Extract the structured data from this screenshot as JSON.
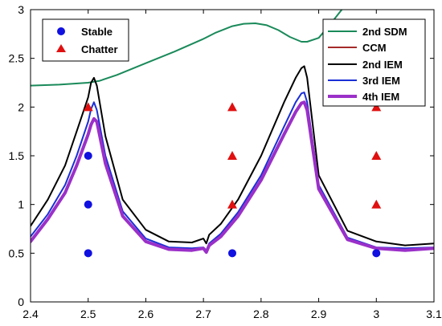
{
  "chart_data": {
    "type": "line",
    "xlim": [
      2.4,
      3.1
    ],
    "ylim": [
      0,
      3
    ],
    "xticks": [
      "2.4",
      "2.5",
      "2.6",
      "2.7",
      "2.8",
      "2.9",
      "3",
      "3.1"
    ],
    "yticks": [
      "0",
      "0.5",
      "1",
      "1.5",
      "2",
      "2.5",
      "3"
    ],
    "grid": false,
    "colors": {
      "sdm2": "#1a8a5a",
      "ccm": "#a52a2a",
      "iem2": "#000000",
      "iem3": "#1a2fd6",
      "iem4": "#9b30c8",
      "stable": "#1010e0",
      "chatter": "#e01010"
    },
    "markers": {
      "stable": {
        "name": "Stable",
        "x": [
          2.5,
          2.5,
          2.5,
          2.75,
          3.0
        ],
        "y": [
          1.5,
          1.0,
          0.5,
          0.5,
          0.5
        ]
      },
      "chatter": {
        "name": "Chatter",
        "x": [
          2.5,
          2.75,
          2.75,
          2.75,
          3.0,
          3.0,
          3.0
        ],
        "y": [
          2.0,
          2.0,
          1.5,
          1.0,
          2.0,
          1.5,
          1.0
        ]
      }
    },
    "series": [
      {
        "key": "sdm2",
        "name": "2nd SDM",
        "x": [
          2.4,
          2.45,
          2.5,
          2.52,
          2.55,
          2.6,
          2.65,
          2.7,
          2.72,
          2.75,
          2.77,
          2.79,
          2.81,
          2.83,
          2.85,
          2.87,
          2.88,
          2.9,
          2.92,
          2.94
        ],
        "y": [
          2.22,
          2.23,
          2.25,
          2.27,
          2.33,
          2.45,
          2.57,
          2.7,
          2.76,
          2.83,
          2.855,
          2.86,
          2.84,
          2.79,
          2.72,
          2.67,
          2.67,
          2.71,
          2.85,
          3.0
        ]
      },
      {
        "key": "iem2",
        "name": "2nd IEM",
        "x": [
          2.4,
          2.43,
          2.46,
          2.48,
          2.5,
          2.505,
          2.51,
          2.515,
          2.53,
          2.56,
          2.6,
          2.64,
          2.68,
          2.7,
          2.705,
          2.71,
          2.73,
          2.76,
          2.8,
          2.84,
          2.86,
          2.87,
          2.875,
          2.88,
          2.9,
          2.95,
          3.0,
          3.05,
          3.1
        ],
        "y": [
          0.78,
          1.05,
          1.4,
          1.75,
          2.1,
          2.25,
          2.3,
          2.22,
          1.7,
          1.05,
          0.74,
          0.62,
          0.61,
          0.65,
          0.6,
          0.69,
          0.8,
          1.05,
          1.5,
          2.05,
          2.3,
          2.4,
          2.42,
          2.3,
          1.3,
          0.73,
          0.62,
          0.58,
          0.6
        ]
      },
      {
        "key": "iem3",
        "name": "3rd IEM",
        "x": [
          2.4,
          2.43,
          2.46,
          2.48,
          2.5,
          2.505,
          2.51,
          2.515,
          2.53,
          2.56,
          2.6,
          2.64,
          2.68,
          2.7,
          2.705,
          2.71,
          2.73,
          2.76,
          2.8,
          2.84,
          2.86,
          2.87,
          2.875,
          2.88,
          2.9,
          2.95,
          3.0,
          3.05,
          3.1
        ],
        "y": [
          0.67,
          0.9,
          1.2,
          1.5,
          1.85,
          1.98,
          2.05,
          1.97,
          1.5,
          0.93,
          0.65,
          0.56,
          0.55,
          0.56,
          0.53,
          0.6,
          0.7,
          0.92,
          1.3,
          1.8,
          2.05,
          2.14,
          2.15,
          2.05,
          1.2,
          0.66,
          0.56,
          0.55,
          0.56
        ]
      },
      {
        "key": "ccm",
        "name": "CCM",
        "x": [
          2.4,
          2.43,
          2.46,
          2.48,
          2.5,
          2.505,
          2.51,
          2.515,
          2.53,
          2.56,
          2.6,
          2.64,
          2.68,
          2.7,
          2.705,
          2.71,
          2.73,
          2.76,
          2.8,
          2.84,
          2.86,
          2.87,
          2.875,
          2.88,
          2.9,
          2.95,
          3.0,
          3.05,
          3.1
        ],
        "y": [
          0.62,
          0.85,
          1.12,
          1.4,
          1.72,
          1.82,
          1.88,
          1.85,
          1.42,
          0.88,
          0.62,
          0.54,
          0.53,
          0.55,
          0.51,
          0.58,
          0.67,
          0.88,
          1.25,
          1.72,
          1.95,
          2.04,
          2.05,
          1.97,
          1.16,
          0.64,
          0.55,
          0.53,
          0.55
        ]
      },
      {
        "key": "iem4",
        "name": "4th IEM",
        "x": [
          2.4,
          2.43,
          2.46,
          2.48,
          2.5,
          2.505,
          2.51,
          2.515,
          2.53,
          2.56,
          2.6,
          2.64,
          2.68,
          2.7,
          2.705,
          2.71,
          2.73,
          2.76,
          2.8,
          2.84,
          2.86,
          2.87,
          2.875,
          2.88,
          2.9,
          2.95,
          3.0,
          3.05,
          3.1
        ],
        "y": [
          0.62,
          0.85,
          1.12,
          1.4,
          1.72,
          1.82,
          1.88,
          1.85,
          1.42,
          0.88,
          0.62,
          0.54,
          0.53,
          0.55,
          0.51,
          0.58,
          0.67,
          0.88,
          1.25,
          1.72,
          1.95,
          2.04,
          2.05,
          1.97,
          1.16,
          0.64,
          0.55,
          0.53,
          0.55
        ]
      }
    ],
    "legends": {
      "markers": [
        "Stable",
        "Chatter"
      ],
      "lines": [
        "2nd SDM",
        "CCM",
        "2nd IEM",
        "3rd IEM",
        "4th IEM"
      ]
    }
  }
}
